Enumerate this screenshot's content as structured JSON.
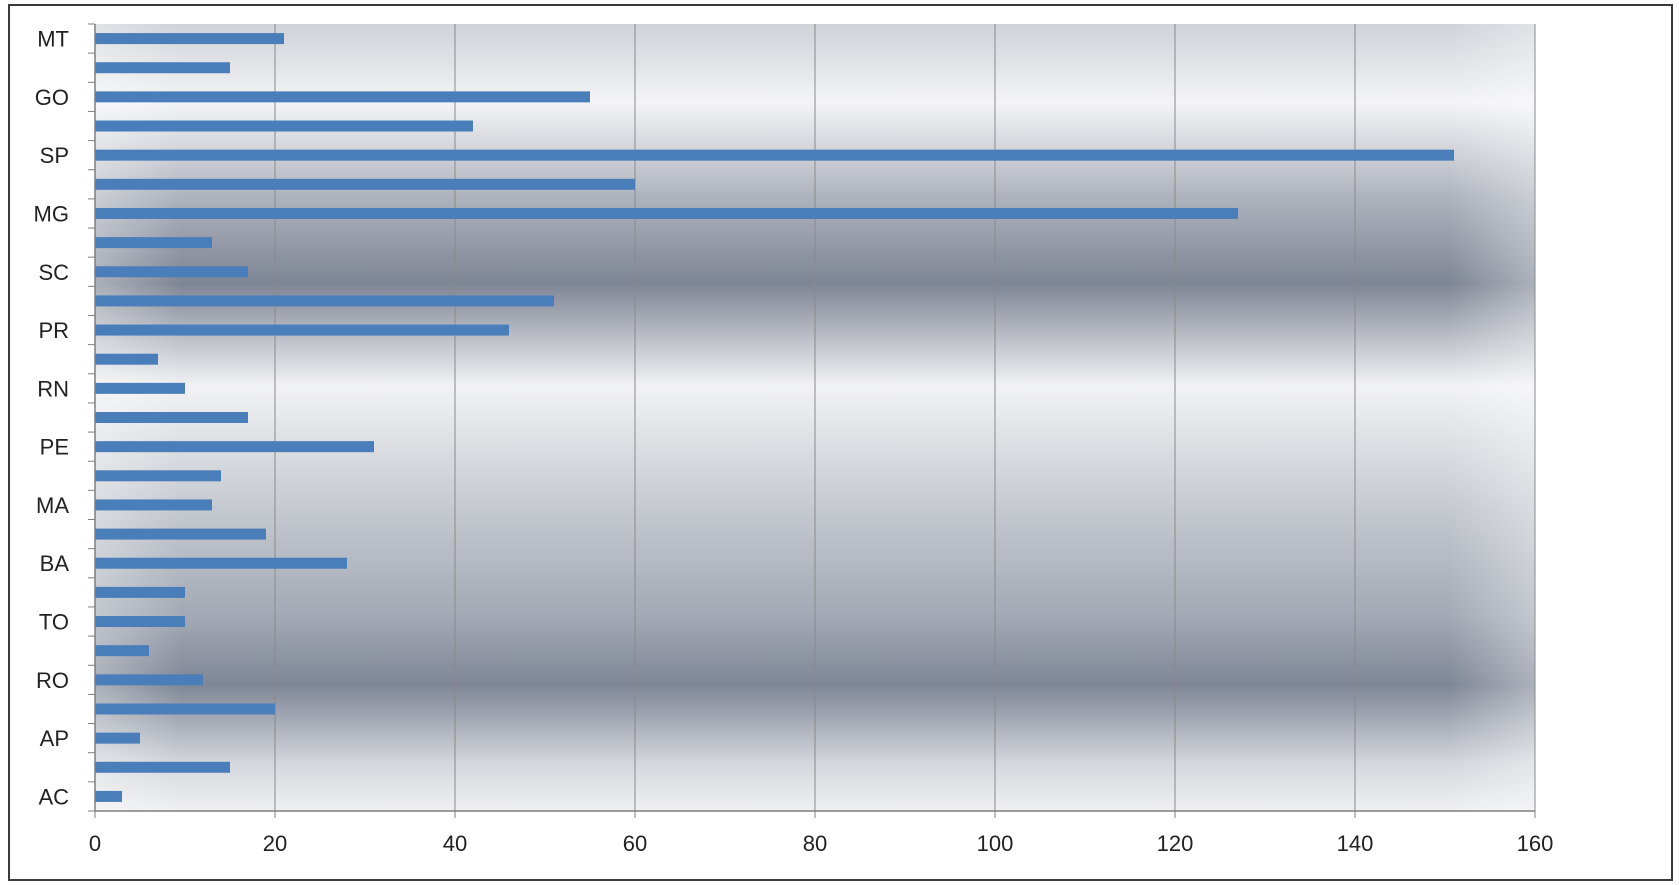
{
  "chart_data": {
    "type": "bar",
    "orientation": "horizontal",
    "title": "",
    "xlabel": "",
    "ylabel": "",
    "xlim": [
      0,
      160
    ],
    "x_ticks": [
      "0",
      "20",
      "40",
      "60",
      "80",
      "100",
      "120",
      "140",
      "160"
    ],
    "categories": [
      "AC",
      "",
      "AP",
      "",
      "RO",
      "",
      "TO",
      "",
      "BA",
      "",
      "MA",
      "",
      "PE",
      "",
      "RN",
      "",
      "PR",
      "",
      "SC",
      "",
      "MG",
      "",
      "SP",
      "",
      "GO",
      "",
      "MT"
    ],
    "values": [
      3,
      15,
      5,
      20,
      12,
      6,
      10,
      10,
      28,
      19,
      13,
      14,
      31,
      17,
      10,
      7,
      46,
      51,
      17,
      13,
      127,
      60,
      151,
      42,
      55,
      15,
      21
    ],
    "grid": "vertical",
    "legend": "none",
    "colors": {
      "bar": "#4a7ebb",
      "plot_bg_light": "#f2f2f4",
      "plot_bg_dark": "#7e8594",
      "gridline": "#8a8a8a",
      "axis": "#7f7f7f",
      "frame": "#3a3a3a"
    }
  }
}
